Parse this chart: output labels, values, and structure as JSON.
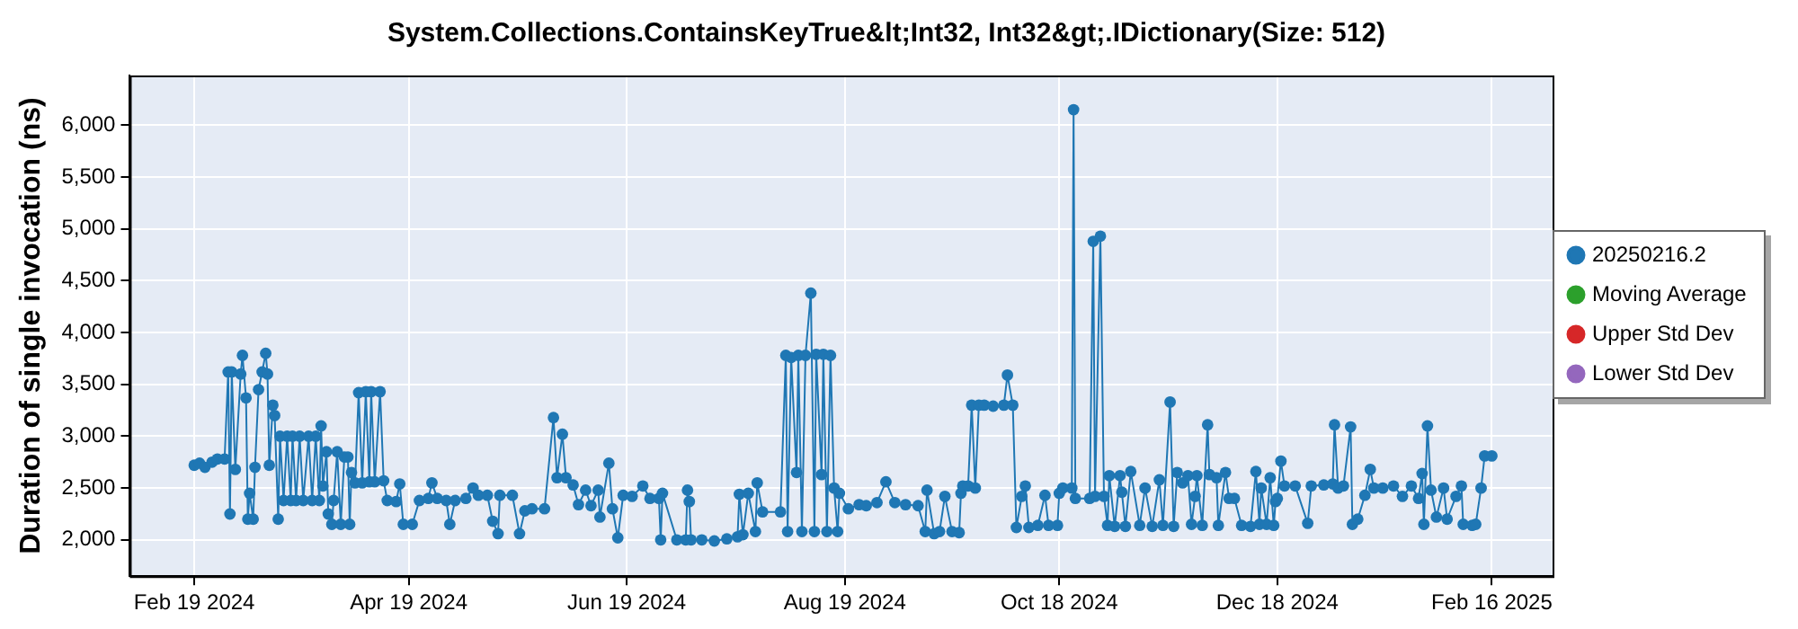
{
  "chart_data": {
    "type": "line",
    "title": "System.Collections.ContainsKeyTrue&lt;Int32, Int32&gt;.IDictionary(Size: 512)",
    "ylabel": "Duration of single invocation (ns)",
    "xlim": [
      "2024-02-01",
      "2025-03-05"
    ],
    "xticks": [
      {
        "value": "2024-02-19",
        "label": "Feb 19 2024"
      },
      {
        "value": "2024-04-19",
        "label": "Apr 19 2024"
      },
      {
        "value": "2024-06-19",
        "label": "Jun 19 2024"
      },
      {
        "value": "2024-08-19",
        "label": "Aug 19 2024"
      },
      {
        "value": "2024-10-18",
        "label": "Oct 18 2024"
      },
      {
        "value": "2024-12-18",
        "label": "Dec 18 2024"
      },
      {
        "value": "2025-02-16",
        "label": "Feb 16 2025"
      }
    ],
    "ylim": [
      1650,
      6480
    ],
    "yticks": [
      {
        "value": 2000,
        "label": "2,000"
      },
      {
        "value": 2500,
        "label": "2,500"
      },
      {
        "value": 3000,
        "label": "3,000"
      },
      {
        "value": 3500,
        "label": "3,500"
      },
      {
        "value": 4000,
        "label": "4,000"
      },
      {
        "value": 4500,
        "label": "4,500"
      },
      {
        "value": 5000,
        "label": "5,000"
      },
      {
        "value": 5500,
        "label": "5,500"
      },
      {
        "value": 6000,
        "label": "6,000"
      }
    ],
    "grid": true,
    "legend": "right",
    "marker": "circle",
    "line_style": "solid",
    "series": [
      {
        "name": "20250216.2",
        "color": "#1f77b4",
        "x": [
          "2024-02-19",
          "2024-02-20T12:00",
          "2024-02-22",
          "2024-02-24",
          "2024-02-25T12:00",
          "2024-02-27T12:00",
          "2024-02-28T12:00",
          "2024-02-29",
          "2024-02-29T12:00",
          "2024-03-01T12:00",
          "2024-03-03",
          "2024-03-03T12:00",
          "2024-03-04T12:00",
          "2024-03-05",
          "2024-03-05T12:00",
          "2024-03-06T12:00",
          "2024-03-07",
          "2024-03-08",
          "2024-03-09",
          "2024-03-10",
          "2024-03-10T12:00",
          "2024-03-11",
          "2024-03-12",
          "2024-03-12T12:00",
          "2024-03-13T12:00",
          "2024-03-14",
          "2024-03-15",
          "2024-03-16",
          "2024-03-17",
          "2024-03-17T12:00",
          "2024-03-18T12:00",
          "2024-03-19T12:00",
          "2024-03-20T12:00",
          "2024-03-22",
          "2024-03-23",
          "2024-03-24",
          "2024-03-25",
          "2024-03-25T12:00",
          "2024-03-26",
          "2024-03-27",
          "2024-03-27T12:00",
          "2024-03-28T12:00",
          "2024-03-29",
          "2024-03-30",
          "2024-03-31",
          "2024-04-01",
          "2024-04-02",
          "2024-04-02T12:00",
          "2024-04-03",
          "2024-04-04",
          "2024-04-05",
          "2024-04-06",
          "2024-04-07",
          "2024-04-08",
          "2024-04-08T12:00",
          "2024-04-09T12:00",
          "2024-04-11",
          "2024-04-12",
          "2024-04-13",
          "2024-04-15T12:00",
          "2024-04-16T12:00",
          "2024-04-17T12:00",
          "2024-04-20",
          "2024-04-22",
          "2024-04-24T12:00",
          "2024-04-25T12:00",
          "2024-04-27",
          "2024-04-29T12:00",
          "2024-04-30T12:00",
          "2024-05-02",
          "2024-05-05",
          "2024-05-07",
          "2024-05-08T12:00",
          "2024-05-11",
          "2024-05-12T12:00",
          "2024-05-14",
          "2024-05-14T12:00",
          "2024-05-18",
          "2024-05-20",
          "2024-05-21T12:00",
          "2024-05-23T12:00",
          "2024-05-27",
          "2024-05-29T12:00",
          "2024-05-30T12:00",
          "2024-06-01",
          "2024-06-02",
          "2024-06-04",
          "2024-06-05T12:00",
          "2024-06-07T12:00",
          "2024-06-09",
          "2024-06-11",
          "2024-06-11T12:00",
          "2024-06-14",
          "2024-06-15",
          "2024-06-16T12:00",
          "2024-06-18",
          "2024-06-20T12:00",
          "2024-06-23T12:00",
          "2024-06-25T12:00",
          "2024-06-28",
          "2024-06-28T12:00",
          "2024-06-29",
          "2024-07-03",
          "2024-07-05T12:00",
          "2024-07-06",
          "2024-07-06T12:00",
          "2024-07-07",
          "2024-07-10",
          "2024-07-13T12:00",
          "2024-07-17",
          "2024-07-20",
          "2024-07-20T12:00",
          "2024-07-21T12:00",
          "2024-07-23",
          "2024-07-25",
          "2024-07-25T12:00",
          "2024-07-27",
          "2024-08-01",
          "2024-08-02T12:00",
          "2024-08-03",
          "2024-08-04",
          "2024-08-05T12:00",
          "2024-08-06",
          "2024-08-07",
          "2024-08-08",
          "2024-08-09T12:00",
          "2024-08-10T12:00",
          "2024-08-11",
          "2024-08-12T12:00",
          "2024-08-13",
          "2024-08-14",
          "2024-08-15",
          "2024-08-16",
          "2024-08-17",
          "2024-08-17T12:00",
          "2024-08-20",
          "2024-08-23",
          "2024-08-25",
          "2024-08-28",
          "2024-08-30T12:00",
          "2024-09-02",
          "2024-09-05",
          "2024-09-08T12:00",
          "2024-09-10T12:00",
          "2024-09-11",
          "2024-09-13",
          "2024-09-14T12:00",
          "2024-09-16",
          "2024-09-18",
          "2024-09-20",
          "2024-09-20T12:00",
          "2024-09-21",
          "2024-09-22T12:00",
          "2024-09-23T12:00",
          "2024-09-24T12:00",
          "2024-09-25T12:00",
          "2024-09-27",
          "2024-09-29T12:00",
          "2024-10-02T12:00",
          "2024-10-03T12:00",
          "2024-10-05",
          "2024-10-06",
          "2024-10-07T12:00",
          "2024-10-08T12:00",
          "2024-10-09T12:00",
          "2024-10-12",
          "2024-10-14",
          "2024-10-15",
          "2024-10-17T12:00",
          "2024-10-18",
          "2024-10-19",
          "2024-10-21T12:00",
          "2024-10-22",
          "2024-10-22T12:00",
          "2024-10-26T12:00",
          "2024-10-27T12:00",
          "2024-10-28",
          "2024-10-29T12:00",
          "2024-10-30T12:00",
          "2024-10-31T12:00",
          "2024-11-01",
          "2024-11-02T12:00",
          "2024-11-04",
          "2024-11-04T12:00",
          "2024-11-05T12:00",
          "2024-11-07",
          "2024-11-09T12:00",
          "2024-11-11",
          "2024-11-13",
          "2024-11-15",
          "2024-11-16",
          "2024-11-18",
          "2024-11-19",
          "2024-11-20",
          "2024-11-21T12:00",
          "2024-11-23",
          "2024-11-24",
          "2024-11-25",
          "2024-11-25T12:00",
          "2024-11-27",
          "2024-11-28T12:00",
          "2024-11-29",
          "2024-12-01",
          "2024-12-01T12:00",
          "2024-12-03T12:00",
          "2024-12-04T12:00",
          "2024-12-06",
          "2024-12-08",
          "2024-12-10T12:00",
          "2024-12-12",
          "2024-12-13",
          "2024-12-13T12:00",
          "2024-12-15",
          "2024-12-16",
          "2024-12-17",
          "2024-12-17T12:00",
          "2024-12-18",
          "2024-12-19",
          "2024-12-20",
          "2024-12-23",
          "2024-12-26T12:00",
          "2024-12-27T12:00",
          "2024-12-31",
          "2025-01-02T12:00",
          "2025-01-03",
          "2025-01-04",
          "2025-01-05T12:00",
          "2025-01-07T12:00",
          "2025-01-08",
          "2025-01-09T12:00",
          "2025-01-11T12:00",
          "2025-01-13",
          "2025-01-14",
          "2025-01-16T12:00",
          "2025-01-19T12:00",
          "2025-01-22",
          "2025-01-24T12:00",
          "2025-01-26T12:00",
          "2025-01-27T12:00",
          "2025-01-28",
          "2025-01-29",
          "2025-01-30",
          "2025-01-31T12:00",
          "2025-02-02T12:00",
          "2025-02-03T12:00",
          "2025-02-06",
          "2025-02-07T12:00",
          "2025-02-08",
          "2025-02-10T12:00",
          "2025-02-11T12:00",
          "2025-02-13",
          "2025-02-14",
          "2025-02-16"
        ],
        "values": [
          2720,
          2740,
          2700,
          2750,
          2780,
          2780,
          3620,
          2250,
          3620,
          2680,
          3600,
          3780,
          3370,
          2200,
          2450,
          2200,
          2700,
          3450,
          3620,
          3800,
          3600,
          2720,
          3300,
          3200,
          2200,
          3000,
          2380,
          3000,
          2380,
          3000,
          2380,
          3000,
          2380,
          3000,
          2380,
          3000,
          2380,
          3100,
          2520,
          2850,
          2250,
          2150,
          2380,
          2850,
          2150,
          2800,
          2800,
          2150,
          2650,
          2550,
          3420,
          2550,
          3430,
          2560,
          3430,
          2560,
          3430,
          2570,
          2380,
          2370,
          2540,
          2150,
          2150,
          2380,
          2400,
          2550,
          2400,
          2380,
          2150,
          2380,
          2400,
          2500,
          2430,
          2430,
          2180,
          2060,
          2430,
          2430,
          2060,
          2280,
          2300,
          2300,
          3180,
          2600,
          3020,
          2600,
          2530,
          2340,
          2480,
          2330,
          2480,
          2220,
          2740,
          2300,
          2020,
          2430,
          2420,
          2520,
          2400,
          2400,
          2000,
          2450,
          2000,
          2000,
          2480,
          2370,
          2000,
          2000,
          1990,
          2010,
          2030,
          2440,
          2050,
          2450,
          2080,
          2550,
          2270,
          2270,
          3780,
          2080,
          3760,
          2650,
          3780,
          2080,
          3780,
          4380,
          2080,
          3790,
          2630,
          3790,
          2080,
          3780,
          2500,
          2080,
          2450,
          2300,
          2340,
          2330,
          2360,
          2560,
          2360,
          2340,
          2330,
          2080,
          2480,
          2060,
          2080,
          2420,
          2080,
          2070,
          2450,
          2520,
          2520,
          3300,
          2500,
          3300,
          3300,
          3290,
          3300,
          3590,
          3300,
          2120,
          2420,
          2520,
          2120,
          2140,
          2430,
          2140,
          2140,
          2450,
          2500,
          2500,
          6150,
          2400,
          2400,
          4880,
          2420,
          4930,
          2420,
          2140,
          2620,
          2130,
          2620,
          2460,
          2130,
          2660,
          2140,
          2500,
          2130,
          2580,
          2140,
          3330,
          2130,
          2650,
          2550,
          2620,
          2150,
          2420,
          2620,
          2140,
          3110,
          2630,
          2600,
          2140,
          2650,
          2400,
          2400,
          2140,
          2130,
          2660,
          2150,
          2500,
          2150,
          2600,
          2140,
          2370,
          2400,
          2760,
          2520,
          2520,
          2160,
          2520,
          2530,
          2540,
          3110,
          2500,
          2520,
          3090,
          2150,
          2200,
          2430,
          2680,
          2500,
          2500,
          2520,
          2420,
          2520,
          2400,
          2640,
          2150,
          3100,
          2480,
          2220,
          2500,
          2200,
          2420,
          2520,
          2150,
          2140,
          2150,
          2500,
          2810,
          2810
        ]
      },
      {
        "name": "Moving Average",
        "color": "#2ca02c"
      },
      {
        "name": "Upper Std Dev",
        "color": "#d62728"
      },
      {
        "name": "Lower Std Dev",
        "color": "#9467bd"
      }
    ]
  }
}
